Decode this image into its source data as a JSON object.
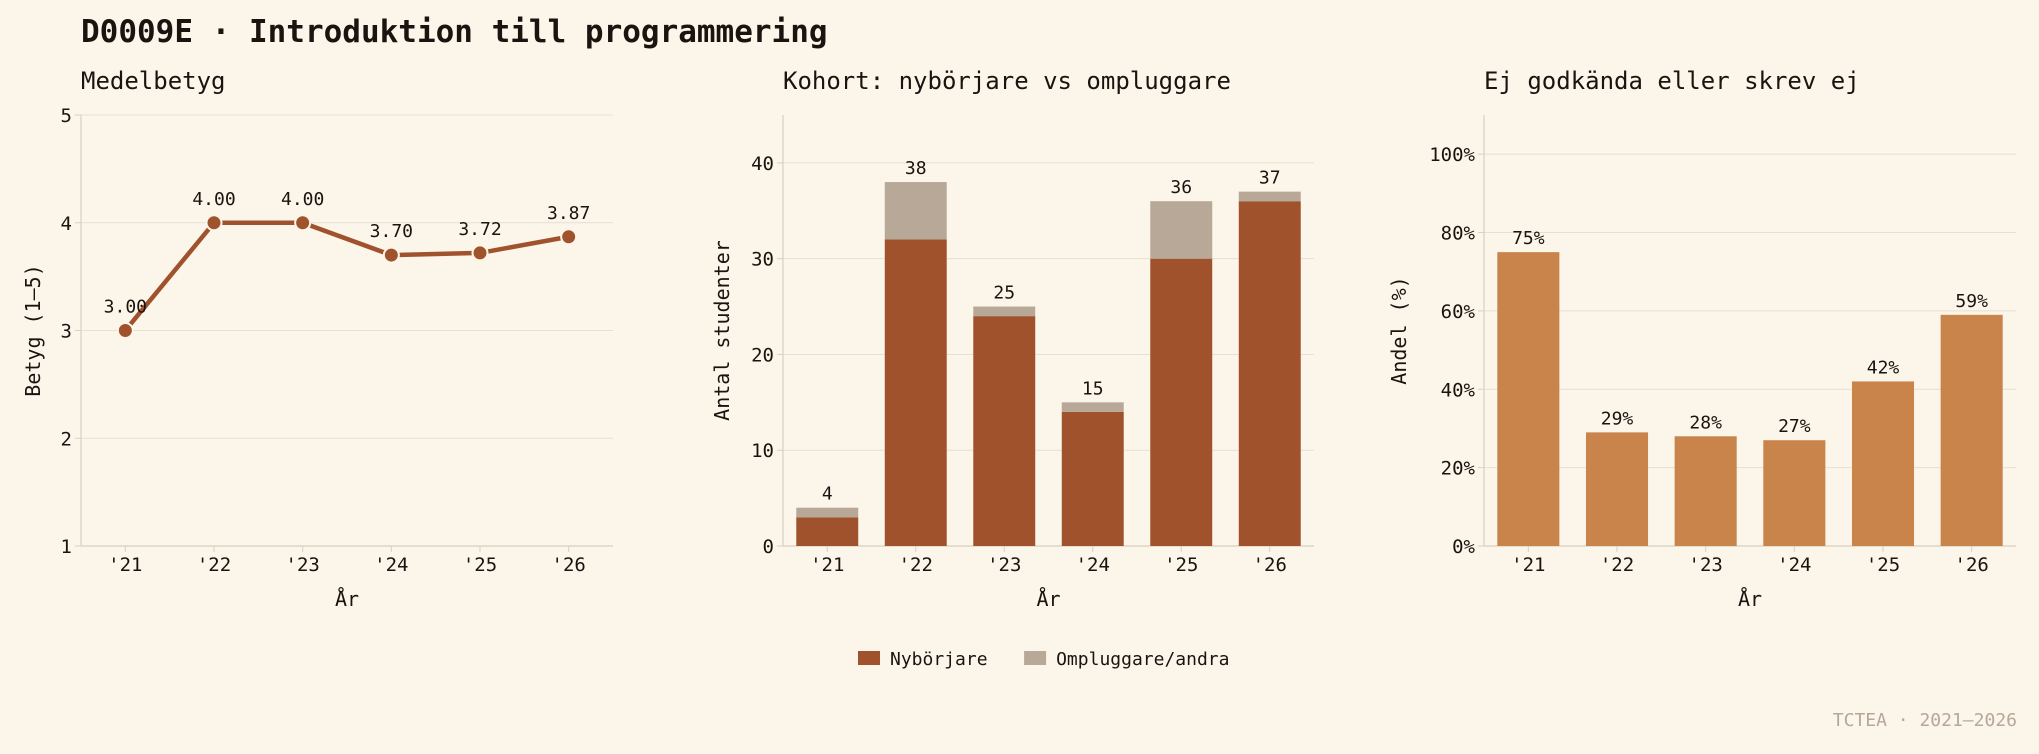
{
  "title": "D0009E · Introduktion till programmering",
  "footer": "TCTEA · 2021–2026",
  "colors": {
    "background": "#fcf5ea",
    "line": "#a0522d",
    "nyborjare": "#a0522d",
    "ompluggare": "#b8a898",
    "failed": "#c8844a",
    "grid": "#e8dfd2"
  },
  "chart_data": [
    {
      "type": "line",
      "title": "Medelbetyg",
      "xlabel": "År",
      "ylabel": "Betyg (1–5)",
      "categories": [
        "'21",
        "'22",
        "'23",
        "'24",
        "'25",
        "'26"
      ],
      "values": [
        3.0,
        4.0,
        4.0,
        3.7,
        3.72,
        3.87
      ],
      "value_labels": [
        "3.00",
        "4.00",
        "4.00",
        "3.70",
        "3.72",
        "3.87"
      ],
      "ylim": [
        1,
        5
      ],
      "yticks": [
        1,
        2,
        3,
        4,
        5
      ],
      "ytick_labels": [
        "1",
        "2",
        "3",
        "4",
        "5"
      ],
      "grid": true
    },
    {
      "type": "bar",
      "stacked": true,
      "title": "Kohort: nybörjare vs ompluggare",
      "xlabel": "År",
      "ylabel": "Antal studenter",
      "categories": [
        "'21",
        "'22",
        "'23",
        "'24",
        "'25",
        "'26"
      ],
      "series": [
        {
          "name": "Nybörjare",
          "values": [
            3,
            32,
            24,
            14,
            30,
            36
          ]
        },
        {
          "name": "Ompluggare/andra",
          "values": [
            1,
            6,
            1,
            1,
            6,
            1
          ]
        }
      ],
      "totals": [
        4,
        38,
        25,
        15,
        36,
        37
      ],
      "total_labels": [
        "4",
        "38",
        "25",
        "15",
        "36",
        "37"
      ],
      "ylim": [
        0,
        45
      ],
      "yticks": [
        0,
        10,
        20,
        30,
        40
      ],
      "ytick_labels": [
        "0",
        "10",
        "20",
        "30",
        "40"
      ],
      "legend": "bottom-center",
      "grid": true
    },
    {
      "type": "bar",
      "title": "Ej godkända eller skrev ej",
      "xlabel": "År",
      "ylabel": "Andel (%)",
      "categories": [
        "'21",
        "'22",
        "'23",
        "'24",
        "'25",
        "'26"
      ],
      "values": [
        75,
        29,
        28,
        27,
        42,
        59
      ],
      "value_labels": [
        "75%",
        "29%",
        "28%",
        "27%",
        "42%",
        "59%"
      ],
      "ylim": [
        0,
        110
      ],
      "yticks": [
        0,
        20,
        40,
        60,
        80,
        100
      ],
      "ytick_labels": [
        "0%",
        "20%",
        "40%",
        "60%",
        "80%",
        "100%"
      ],
      "grid": true
    }
  ]
}
